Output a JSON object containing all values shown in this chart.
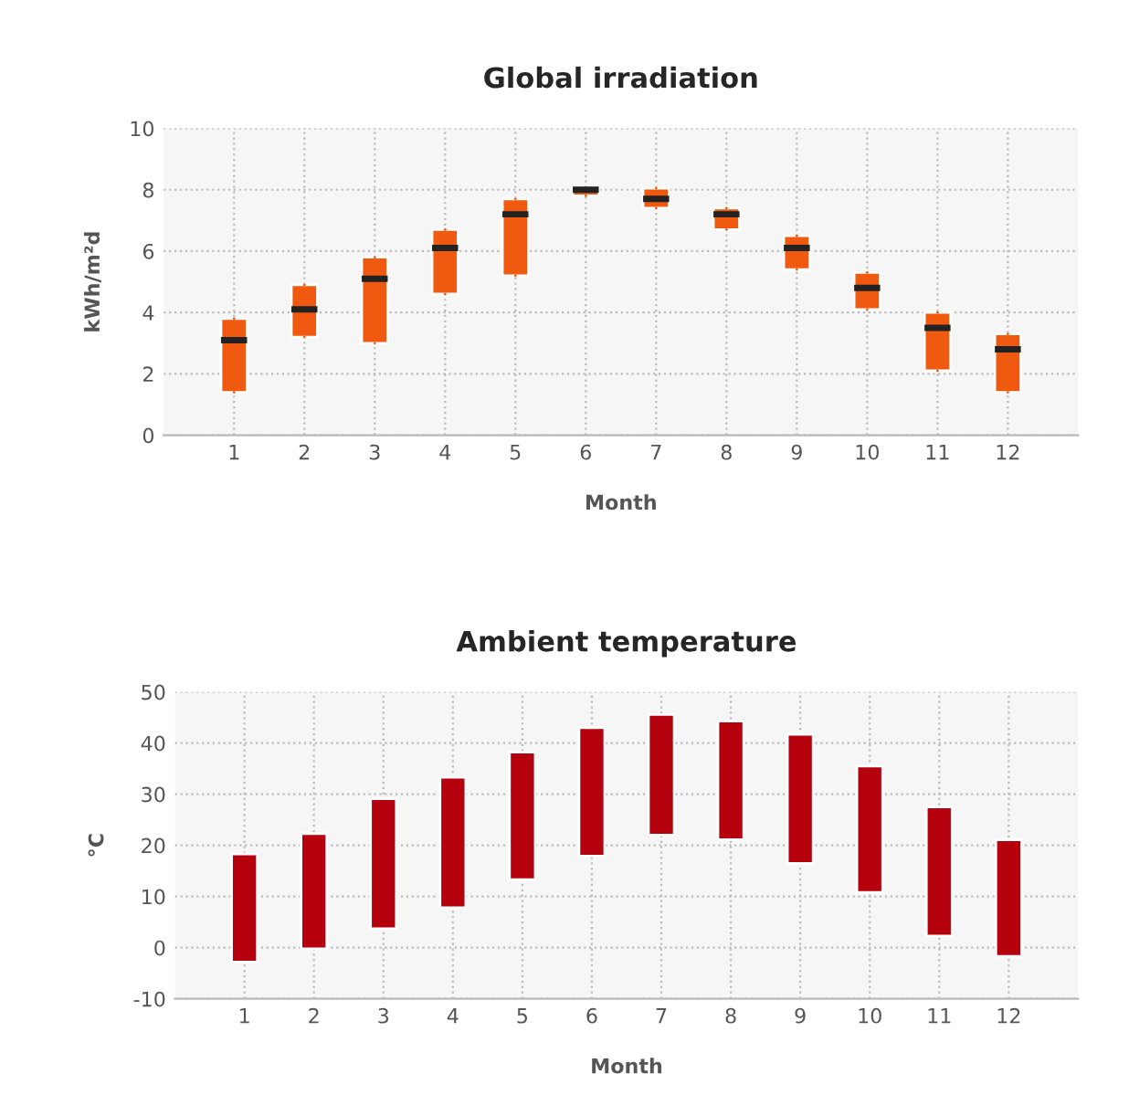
{
  "chart_data": [
    {
      "type": "box",
      "title": "Global irradiation",
      "xlabel": "Month",
      "ylabel": "kWh/m²d",
      "categories": [
        "1",
        "2",
        "3",
        "4",
        "5",
        "6",
        "7",
        "8",
        "9",
        "10",
        "11",
        "12"
      ],
      "color": "#f05a10",
      "boxes": [
        {
          "low": 1.4,
          "q1": 1.4,
          "median": 3.1,
          "q3": 3.8,
          "high": 3.8
        },
        {
          "low": 3.2,
          "q1": 3.2,
          "median": 4.1,
          "q3": 4.9,
          "high": 4.9
        },
        {
          "low": 3.0,
          "q1": 3.0,
          "median": 5.1,
          "q3": 5.8,
          "high": 5.8
        },
        {
          "low": 4.6,
          "q1": 4.6,
          "median": 6.1,
          "q3": 6.7,
          "high": 6.7
        },
        {
          "low": 5.2,
          "q1": 5.2,
          "median": 7.2,
          "q3": 7.7,
          "high": 7.7
        },
        {
          "low": 7.8,
          "q1": 7.8,
          "median": 8.0,
          "q3": 8.05,
          "high": 8.05
        },
        {
          "low": 7.4,
          "q1": 7.4,
          "median": 7.7,
          "q3": 8.05,
          "high": 8.05
        },
        {
          "low": 6.7,
          "q1": 6.7,
          "median": 7.2,
          "q3": 7.4,
          "high": 7.4
        },
        {
          "low": 5.4,
          "q1": 5.4,
          "median": 6.1,
          "q3": 6.5,
          "high": 6.5
        },
        {
          "low": 4.1,
          "q1": 4.1,
          "median": 4.8,
          "q3": 5.3,
          "high": 5.3
        },
        {
          "low": 2.1,
          "q1": 2.1,
          "median": 3.5,
          "q3": 4.0,
          "high": 4.0
        },
        {
          "low": 1.4,
          "q1": 1.4,
          "median": 2.8,
          "q3": 3.3,
          "high": 3.3
        }
      ],
      "ylim": [
        0,
        10
      ],
      "yticks": [
        0,
        2,
        4,
        6,
        8,
        10
      ],
      "grid": true
    },
    {
      "type": "bar",
      "title": "Ambient temperature",
      "xlabel": "Month",
      "ylabel": "°C",
      "categories": [
        "1",
        "2",
        "3",
        "4",
        "5",
        "6",
        "7",
        "8",
        "9",
        "10",
        "11",
        "12"
      ],
      "base": [
        -2.8,
        -0.2,
        3.7,
        7.8,
        13.3,
        17.9,
        22.0,
        21.1,
        16.5,
        10.8,
        2.3,
        -1.7
      ],
      "values": [
        21.1,
        22.5,
        25.4,
        25.5,
        24.9,
        25.1,
        23.6,
        23.2,
        25.2,
        24.7,
        25.2,
        22.8
      ],
      "color": "#b5000e",
      "ylim": [
        -10,
        50
      ],
      "yticks": [
        -10,
        0,
        10,
        20,
        30,
        40,
        50
      ],
      "grid": true
    }
  ]
}
